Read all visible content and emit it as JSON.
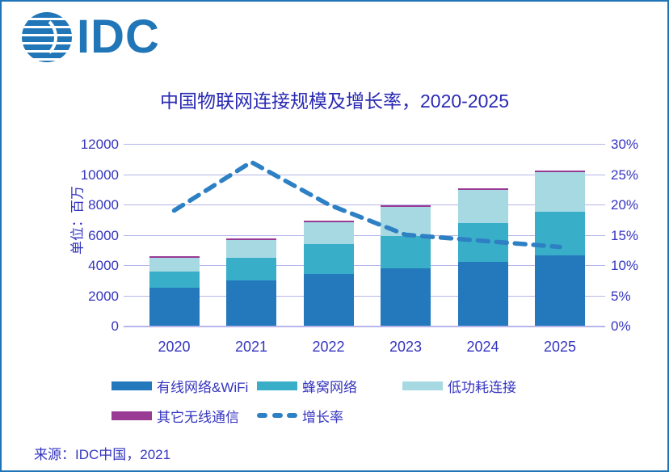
{
  "logo": {
    "text": "IDC"
  },
  "source": "来源：IDC中国，2021",
  "colors": {
    "brand": "#2176b8",
    "border": "#1f75b8",
    "title_text": "#2a2ab4",
    "axis_text": "#3535c0",
    "gridline": "#b6b6ea",
    "wired": "#2478bc",
    "cellular": "#39aec9",
    "lpwa": "#a6d9e2",
    "other": "#993a94",
    "growth_line": "#2e80c4"
  },
  "chart_data": {
    "type": "bar",
    "subtype": "stacked bars with dashed growth-rate line on secondary axis",
    "title": "中国物联网连接规模及增长率，2020-2025",
    "xlabel": "",
    "ylabel": "单位：百万",
    "categories": [
      "2020",
      "2021",
      "2022",
      "2023",
      "2024",
      "2025"
    ],
    "series": [
      {
        "name": "有线网络&WiFi",
        "color_key": "wired",
        "values": [
          2500,
          3000,
          3400,
          3800,
          4200,
          4650
        ]
      },
      {
        "name": "蜂窝网络",
        "color_key": "cellular",
        "values": [
          1100,
          1500,
          2000,
          2100,
          2600,
          2850
        ]
      },
      {
        "name": "低功耗连接",
        "color_key": "lpwa",
        "values": [
          900,
          1150,
          1450,
          1950,
          2150,
          2650
        ]
      },
      {
        "name": "其它无线通信",
        "color_key": "other",
        "values": [
          50,
          50,
          50,
          50,
          50,
          50
        ]
      }
    ],
    "stack_totals": [
      4550,
      5700,
      6900,
      7900,
      9000,
      10200
    ],
    "line_series": {
      "name": "增长率",
      "values_pct": [
        19,
        27,
        20,
        15,
        14,
        13
      ]
    },
    "y_left": {
      "min": 0,
      "max": 12000,
      "tick_step": 2000,
      "ticks": [
        "0",
        "2000",
        "4000",
        "6000",
        "8000",
        "10000",
        "12000"
      ]
    },
    "y_right": {
      "min": 0,
      "max": 30,
      "tick_step": 5,
      "ticks": [
        "0%",
        "5%",
        "10%",
        "15%",
        "20%",
        "25%",
        "30%"
      ]
    },
    "grid": "horizontal gridlines on",
    "legend_position": "bottom-left, two rows"
  },
  "legend": {
    "rows": [
      [
        {
          "label": "有线网络&WiFi",
          "swatch": "rect",
          "color_key": "wired"
        },
        {
          "label": "蜂窝网络",
          "swatch": "rect",
          "color_key": "cellular"
        },
        {
          "label": "低功耗连接",
          "swatch": "rect",
          "color_key": "lpwa"
        }
      ],
      [
        {
          "label": "其它无线通信",
          "swatch": "rect",
          "color_key": "other"
        },
        {
          "label": "增长率",
          "swatch": "dash",
          "color_key": "growth_line"
        }
      ]
    ]
  }
}
